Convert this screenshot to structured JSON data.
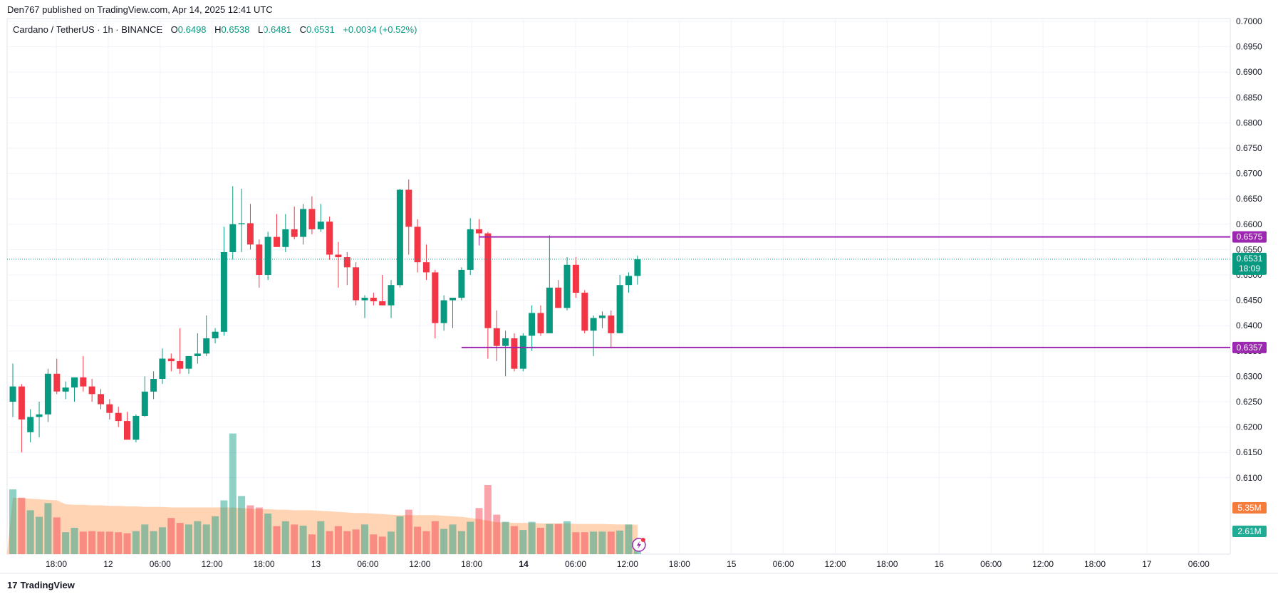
{
  "header": {
    "published": "Den767 published on TradingView.com, Apr 14, 2025 12:41 UTC"
  },
  "legend": {
    "symbol": "Cardano / TetherUS · 1h · BINANCE",
    "o_label": "O",
    "o": "0.6498",
    "h_label": "H",
    "h": "0.6538",
    "l_label": "L",
    "l": "0.6481",
    "c_label": "C",
    "c": "0.6531",
    "change": "+0.0034 (+0.52%)"
  },
  "footer": {
    "brand": "TradingView",
    "logo_text": "17"
  },
  "colors": {
    "up": "#089981",
    "down": "#f23645",
    "level": "#9c27b0",
    "volume_ma": "#ffcca8"
  },
  "chart_data": {
    "type": "candlestick",
    "symbol": "ADA/USDT",
    "interval": "1h",
    "ylim": [
      0.6081,
      0.7
    ],
    "y_ticks": [
      "0.7000",
      "0.6950",
      "0.6900",
      "0.6850",
      "0.6800",
      "0.6750",
      "0.6700",
      "0.6650",
      "0.6600",
      "0.6550",
      "0.6500",
      "0.6450",
      "0.6400",
      "0.6350",
      "0.6300",
      "0.6250",
      "0.6200",
      "0.6150",
      "0.6100"
    ],
    "x_ticks": [
      "18:00",
      "12",
      "06:00",
      "12:00",
      "18:00",
      "13",
      "06:00",
      "12:00",
      "18:00",
      "14",
      "06:00",
      "12:00",
      "18:00",
      "15",
      "06:00",
      "12:00",
      "18:00",
      "16",
      "06:00",
      "12:00",
      "18:00",
      "17",
      "06:00"
    ],
    "ohlc": [
      [
        0.625,
        0.6325,
        0.622,
        0.628
      ],
      [
        0.628,
        0.6285,
        0.615,
        0.6215
      ],
      [
        0.619,
        0.6235,
        0.617,
        0.622
      ],
      [
        0.622,
        0.625,
        0.618,
        0.6225
      ],
      [
        0.6225,
        0.6315,
        0.621,
        0.6305
      ],
      [
        0.6305,
        0.6335,
        0.6265,
        0.627
      ],
      [
        0.627,
        0.629,
        0.6255,
        0.6278
      ],
      [
        0.6278,
        0.6295,
        0.625,
        0.6298
      ],
      [
        0.6298,
        0.634,
        0.627,
        0.628
      ],
      [
        0.628,
        0.6295,
        0.625,
        0.6265
      ],
      [
        0.6265,
        0.6275,
        0.6235,
        0.6245
      ],
      [
        0.6245,
        0.6255,
        0.6215,
        0.6228
      ],
      [
        0.6228,
        0.624,
        0.62,
        0.6212
      ],
      [
        0.6212,
        0.623,
        0.618,
        0.6175
      ],
      [
        0.6175,
        0.6225,
        0.617,
        0.6222
      ],
      [
        0.6222,
        0.63,
        0.622,
        0.627
      ],
      [
        0.627,
        0.631,
        0.6255,
        0.6295
      ],
      [
        0.6295,
        0.6355,
        0.6285,
        0.6335
      ],
      [
        0.6335,
        0.6345,
        0.631,
        0.633
      ],
      [
        0.633,
        0.6395,
        0.6305,
        0.6315
      ],
      [
        0.6315,
        0.6335,
        0.6305,
        0.634
      ],
      [
        0.634,
        0.6385,
        0.6325,
        0.6345
      ],
      [
        0.6345,
        0.642,
        0.634,
        0.6375
      ],
      [
        0.6375,
        0.6395,
        0.6365,
        0.6388
      ],
      [
        0.6388,
        0.6595,
        0.638,
        0.6545
      ],
      [
        0.6545,
        0.6675,
        0.653,
        0.66
      ],
      [
        0.66,
        0.667,
        0.6545,
        0.6602
      ],
      [
        0.6602,
        0.664,
        0.655,
        0.656
      ],
      [
        0.656,
        0.657,
        0.6475,
        0.65
      ],
      [
        0.65,
        0.6585,
        0.649,
        0.6575
      ],
      [
        0.6575,
        0.662,
        0.6555,
        0.6555
      ],
      [
        0.6555,
        0.662,
        0.6545,
        0.659
      ],
      [
        0.659,
        0.6635,
        0.657,
        0.6575
      ],
      [
        0.6575,
        0.664,
        0.656,
        0.663
      ],
      [
        0.663,
        0.6655,
        0.658,
        0.659
      ],
      [
        0.659,
        0.664,
        0.6585,
        0.6605
      ],
      [
        0.6605,
        0.6615,
        0.653,
        0.654
      ],
      [
        0.654,
        0.6565,
        0.6475,
        0.6535
      ],
      [
        0.6535,
        0.6545,
        0.648,
        0.6515
      ],
      [
        0.6515,
        0.6525,
        0.644,
        0.645
      ],
      [
        0.645,
        0.646,
        0.6415,
        0.6455
      ],
      [
        0.6455,
        0.6465,
        0.644,
        0.6448
      ],
      [
        0.6448,
        0.65,
        0.644,
        0.644
      ],
      [
        0.644,
        0.649,
        0.6415,
        0.648
      ],
      [
        0.648,
        0.667,
        0.6475,
        0.6668
      ],
      [
        0.6668,
        0.6688,
        0.654,
        0.6595
      ],
      [
        0.6595,
        0.661,
        0.6505,
        0.6525
      ],
      [
        0.6525,
        0.656,
        0.649,
        0.6505
      ],
      [
        0.6505,
        0.651,
        0.6375,
        0.6405
      ],
      [
        0.6405,
        0.646,
        0.639,
        0.645
      ],
      [
        0.645,
        0.6455,
        0.6395,
        0.6455
      ],
      [
        0.6455,
        0.6515,
        0.645,
        0.651
      ],
      [
        0.651,
        0.6612,
        0.65,
        0.659
      ],
      [
        0.659,
        0.661,
        0.6568,
        0.6582
      ],
      [
        0.6582,
        0.6585,
        0.6335,
        0.6395
      ],
      [
        0.6395,
        0.643,
        0.633,
        0.636
      ],
      [
        0.636,
        0.639,
        0.63,
        0.6375
      ],
      [
        0.6375,
        0.6385,
        0.631,
        0.6315
      ],
      [
        0.6315,
        0.6385,
        0.631,
        0.638
      ],
      [
        0.638,
        0.644,
        0.635,
        0.6425
      ],
      [
        0.6425,
        0.644,
        0.638,
        0.6385
      ],
      [
        0.6385,
        0.6578,
        0.6385,
        0.6475
      ],
      [
        0.6475,
        0.649,
        0.6435,
        0.6435
      ],
      [
        0.6435,
        0.6535,
        0.643,
        0.652
      ],
      [
        0.652,
        0.6535,
        0.6455,
        0.6465
      ],
      [
        0.6465,
        0.647,
        0.6385,
        0.639
      ],
      [
        0.639,
        0.642,
        0.634,
        0.6415
      ],
      [
        0.6415,
        0.6428,
        0.6395,
        0.642
      ],
      [
        0.642,
        0.643,
        0.6355,
        0.6385
      ],
      [
        0.6385,
        0.65,
        0.6385,
        0.648
      ],
      [
        0.648,
        0.6505,
        0.6465,
        0.6498
      ],
      [
        0.6498,
        0.6538,
        0.6481,
        0.6531
      ]
    ],
    "volume": [
      11.8,
      10.3,
      8.0,
      6.8,
      9.3,
      6.7,
      4.0,
      4.8,
      4.1,
      4.2,
      4.1,
      4.1,
      4.0,
      3.8,
      4.2,
      5.4,
      4.2,
      4.9,
      6.6,
      5.7,
      5.4,
      6.0,
      5.4,
      6.9,
      9.8,
      22.0,
      10.6,
      8.9,
      8.5,
      7.4,
      5.1,
      6.0,
      5.4,
      5.2,
      3.6,
      6.0,
      4.2,
      5.1,
      4.2,
      4.5,
      5.4,
      3.6,
      3.2,
      4.1,
      6.9,
      8.1,
      5.0,
      4.2,
      6.0,
      4.6,
      5.4,
      4.2,
      5.9,
      8.4,
      12.6,
      7.2,
      5.9,
      5.1,
      4.4,
      5.9,
      4.8,
      5.5,
      5.5,
      6.0,
      4.0,
      4.0,
      4.1,
      4.1,
      4.1,
      4.3,
      5.4,
      2.61
    ],
    "volume_ma": [
      10.3,
      10.2,
      10.1,
      10.0,
      9.9,
      9.8,
      9.1,
      9.0,
      9.0,
      8.9,
      8.9,
      8.8,
      8.8,
      8.7,
      8.7,
      8.6,
      8.6,
      8.6,
      8.5,
      8.5,
      8.5,
      8.5,
      8.5,
      8.5,
      8.5,
      8.5,
      8.4,
      8.3,
      8.2,
      8.2,
      8.1,
      8.1,
      8.0,
      8.0,
      8.0,
      7.9,
      7.8,
      7.7,
      7.6,
      7.5,
      7.5,
      7.4,
      7.3,
      7.2,
      7.1,
      7.1,
      7.1,
      7.1,
      7.1,
      7.0,
      6.9,
      6.8,
      6.6,
      6.4,
      6.1,
      5.8,
      5.8,
      5.7,
      5.7,
      5.7,
      5.6,
      5.6,
      5.6,
      5.6,
      5.5,
      5.5,
      5.5,
      5.5,
      5.45,
      5.4,
      5.4,
      5.35
    ],
    "resistance": 0.6575,
    "support": 0.6357,
    "last_price": 0.6531,
    "current_price_label": "0.6531",
    "countdown": "18:09",
    "volume_ma_label": "5.35M",
    "volume_label": "2.61M",
    "resistance_label": "0.6575",
    "support_label": "0.6357"
  }
}
